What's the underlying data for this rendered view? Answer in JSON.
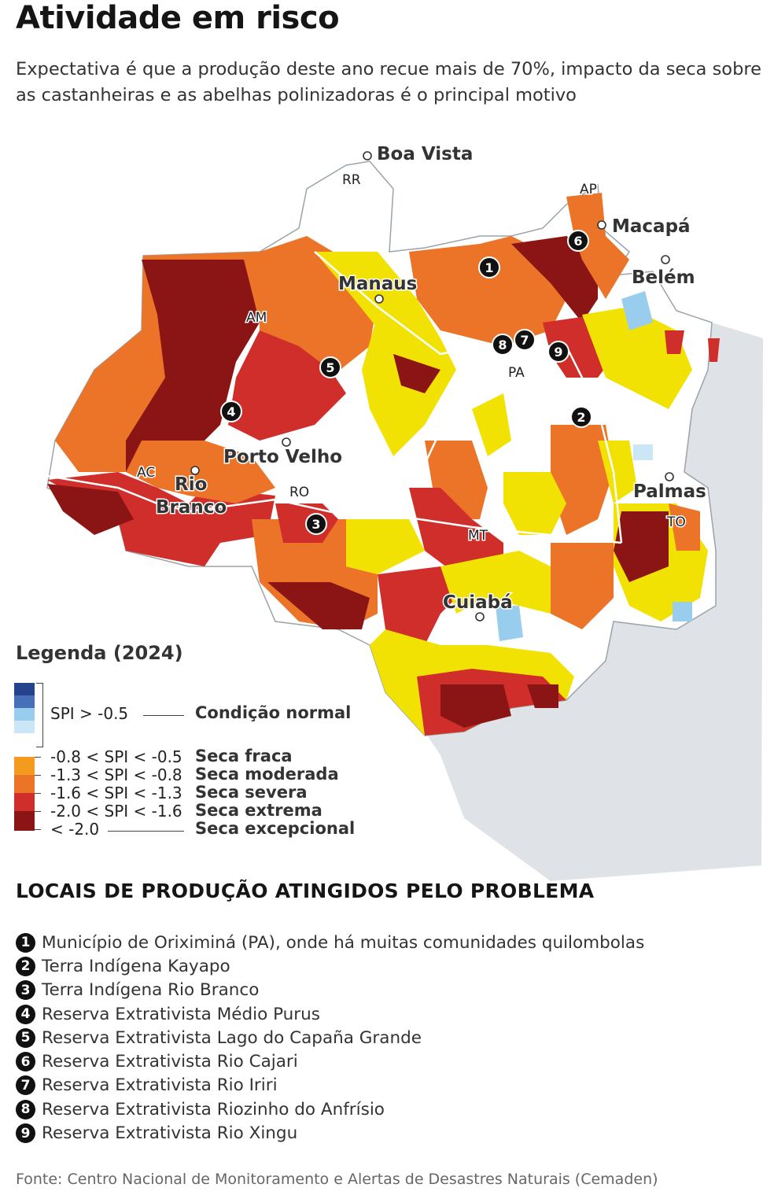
{
  "title": "Atividade em risco",
  "subtitle": "Expectativa é que a produção deste ano recue mais de 70%, impacto da seca sobre as castanheiras e as abelhas polinizadoras é o principal motivo",
  "colors": {
    "normal_dark": "#25428f",
    "normal_mid": "#4670b8",
    "normal_light": "#98cdee",
    "normal_pale": "#cbe6f6",
    "seca_fraca": "#f2e203",
    "seca_moderada": "#f49a1e",
    "seca_severa": "#ec7428",
    "seca_extrema": "#d02e2a",
    "seca_excepcional": "#8b1514",
    "land_outside": "#dfe3e8",
    "no_drought": "#ffffff"
  },
  "map": {
    "cities": [
      {
        "name": "Boa Vista"
      },
      {
        "name": "Macapá"
      },
      {
        "name": "Belém"
      },
      {
        "name": "Manaus"
      },
      {
        "name": "Porto Velho"
      },
      {
        "name": "Rio Branco"
      },
      {
        "name": "Palmas"
      },
      {
        "name": "Cuiabá"
      }
    ],
    "states": [
      "RR",
      "AP",
      "AM",
      "PA",
      "AC",
      "RO",
      "MT",
      "TO"
    ],
    "markers": [
      "1",
      "2",
      "3",
      "4",
      "5",
      "6",
      "7",
      "8",
      "9"
    ]
  },
  "legend": {
    "title": "Legenda (2024)",
    "items": [
      {
        "range": "SPI > -0.5",
        "label": "Condição normal"
      },
      {
        "range": "-0.8 < SPI < -0.5",
        "label": "Seca fraca"
      },
      {
        "range": "-1.3 < SPI < -0.8",
        "label": "Seca moderada"
      },
      {
        "range": "-1.6 < SPI < -1.3",
        "label": "Seca severa"
      },
      {
        "range": "-2.0 < SPI < -1.6",
        "label": "Seca extrema"
      },
      {
        "range": "< -2.0",
        "label": "Seca excepcional"
      }
    ]
  },
  "sites": {
    "heading": "LOCAIS DE PRODUÇÃO ATINGIDOS PELO PROBLEMA",
    "items": [
      {
        "num": "1",
        "text": "Município de Oriximiná (PA), onde há muitas comunidades quilombolas"
      },
      {
        "num": "2",
        "text": "Terra Indígena Kayapo"
      },
      {
        "num": "3",
        "text": "Terra Indígena Rio Branco"
      },
      {
        "num": "4",
        "text": "Reserva Extrativista Médio Purus"
      },
      {
        "num": "5",
        "text": "Reserva Extrativista Lago do Capaña Grande"
      },
      {
        "num": "6",
        "text": "Reserva Extrativista Rio Cajari"
      },
      {
        "num": "7",
        "text": "Reserva Extrativista Rio Iriri"
      },
      {
        "num": "8",
        "text": "Reserva Extrativista Riozinho do Anfrísio"
      },
      {
        "num": "9",
        "text": "Reserva Extrativista Rio Xingu"
      }
    ]
  },
  "source": "Fonte: Centro Nacional de Monitoramento e Alertas de Desastres Naturais (Cemaden)"
}
